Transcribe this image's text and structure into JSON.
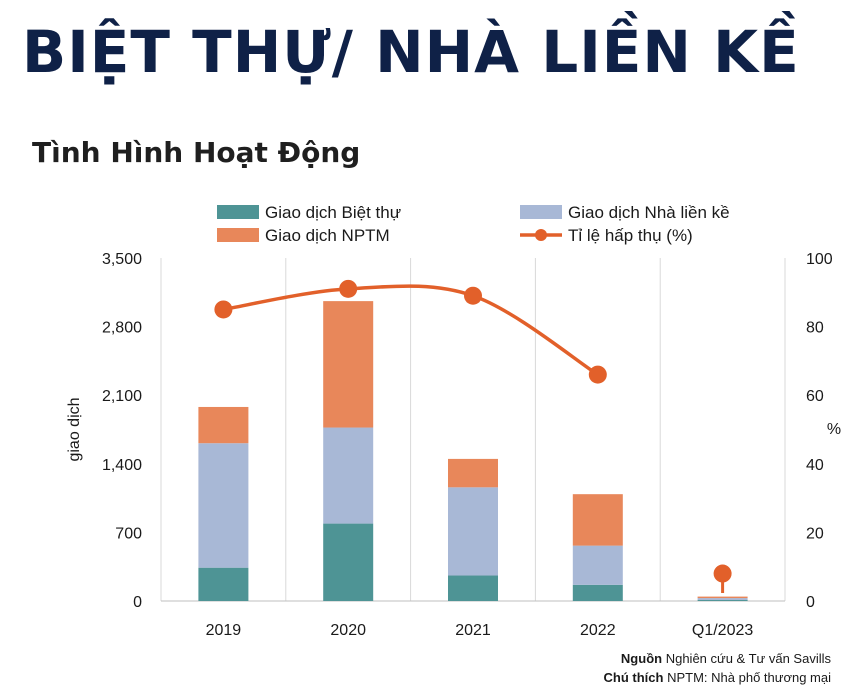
{
  "header": {
    "title": "BIỆT THỰ/ NHÀ LIỀN KỀ",
    "subtitle": "Tình Hình Hoạt Động"
  },
  "footer": {
    "source_label": "Nguồn",
    "source_text": "Nghiên cứu & Tư vấn Savills",
    "note_label": "Chú thích",
    "note_text": "NPTM: Nhà phố thương mại"
  },
  "chart_data": {
    "type": "bar",
    "stacked": true,
    "categories": [
      "2019",
      "2020",
      "2021",
      "2022",
      "Q1/2023"
    ],
    "series": [
      {
        "name": "Giao dịch Biệt thự",
        "color": "#4e9495",
        "values": [
          340,
          790,
          260,
          165,
          10
        ]
      },
      {
        "name": "Giao dịch Nhà liền kề",
        "color": "#a8b8d6",
        "values": [
          1270,
          980,
          900,
          400,
          20
        ]
      },
      {
        "name": "Giao dịch NPTM",
        "color": "#e8875a",
        "values": [
          370,
          1290,
          290,
          525,
          15
        ]
      }
    ],
    "line_series": {
      "name": "Tỉ lệ hấp thụ (%)",
      "color": "#e2602a",
      "axis": "right",
      "values": [
        85,
        91,
        89,
        66,
        8
      ]
    },
    "ylabel": "giao dịch",
    "ylim": [
      0,
      3500
    ],
    "yticks": [
      "0",
      "700",
      "1,400",
      "2,100",
      "2,800",
      "3,500"
    ],
    "y2label": "%",
    "y2lim": [
      0,
      100
    ],
    "y2ticks": [
      "0",
      "20",
      "40",
      "60",
      "80",
      "100"
    ],
    "grid": "vertical",
    "legend_position": "top"
  }
}
